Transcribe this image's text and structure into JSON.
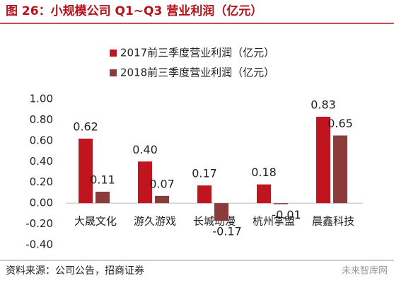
{
  "chart_data": {
    "type": "bar",
    "title": "图 26：小规模公司 Q1~Q3 营业利润（亿元）",
    "source": "资料来源：公司公告，招商证券",
    "watermark": "未来智库网",
    "categories": [
      "大晟文化",
      "游久游戏",
      "长城动漫",
      "杭州掌盟",
      "晨鑫科技"
    ],
    "series": [
      {
        "name": "2017前三季度营业利润（亿元）",
        "color": "#c0141f",
        "values": [
          0.62,
          0.4,
          0.17,
          0.18,
          0.83
        ],
        "value_labels": [
          "0.62",
          "0.40",
          "0.17",
          "0.18",
          "0.83"
        ]
      },
      {
        "name": "2018前三季度营业利润（亿元）",
        "color": "#8c3b3b",
        "values": [
          0.11,
          0.07,
          -0.17,
          -0.01,
          0.65
        ]
      }
    ],
    "ylim": [
      -0.4,
      1.0
    ],
    "yticks": [
      {
        "value": -0.4,
        "label": "-0.40"
      },
      {
        "value": -0.2,
        "label": "-0.20"
      },
      {
        "value": 0,
        "label": "0.00"
      },
      {
        "value": 0.2,
        "label": "0.20"
      },
      {
        "value": 0.4,
        "label": "0.40"
      },
      {
        "value": 0.6,
        "label": "0.60"
      },
      {
        "value": 0.8,
        "label": "0.80"
      },
      {
        "value": 1.0,
        "label": "1.00"
      }
    ],
    "legend": "top-left"
  }
}
